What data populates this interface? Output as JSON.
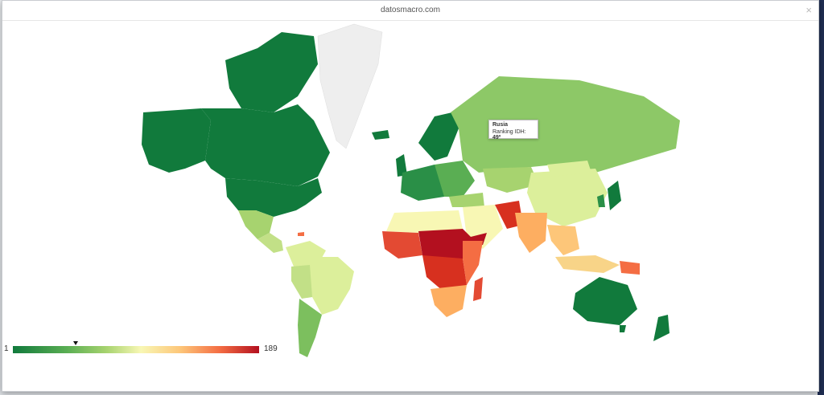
{
  "modal": {
    "title": "datosmacro.com",
    "close_label": "×"
  },
  "tooltip": {
    "country": "Rusia",
    "metric_label": "Ranking IDH:",
    "value": "49º"
  },
  "legend": {
    "min": "1",
    "max": "189",
    "marker_rank": 49
  },
  "colors": {
    "rank_1": "#117a3c",
    "rank_40": "#5aae53",
    "rank_70": "#a7d36f",
    "rank_95": "#f8f7b4",
    "rank_125": "#fdc679",
    "rank_160": "#f46d43",
    "rank_189": "#b3101f",
    "no_data": "#eeeeee"
  }
}
